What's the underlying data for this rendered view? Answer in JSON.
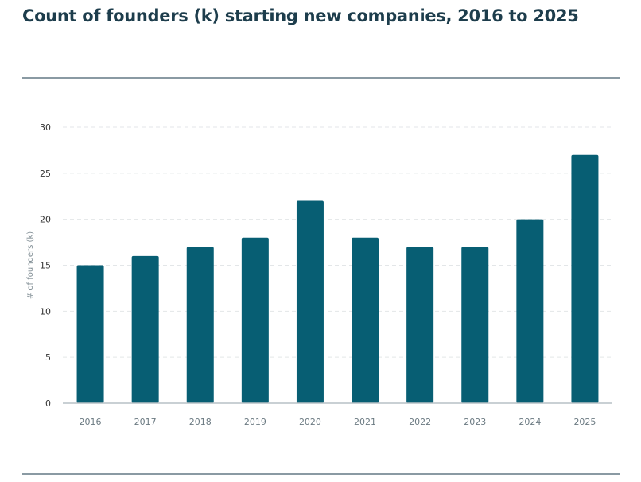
{
  "chart_data": {
    "type": "bar",
    "title": "Count of founders (k) starting new companies, 2016 to 2025",
    "xlabel": "",
    "ylabel": "# of founders (k)",
    "categories": [
      "2016",
      "2017",
      "2018",
      "2019",
      "2020",
      "2021",
      "2022",
      "2023",
      "2024",
      "2025"
    ],
    "values": [
      15,
      16,
      17,
      18,
      22,
      18,
      17,
      17,
      20,
      27
    ],
    "ylim": [
      0,
      30
    ],
    "yticks": [
      "0",
      "5",
      "10",
      "15",
      "20",
      "25",
      "30"
    ],
    "grid": true,
    "bar_color": "#075e73"
  }
}
